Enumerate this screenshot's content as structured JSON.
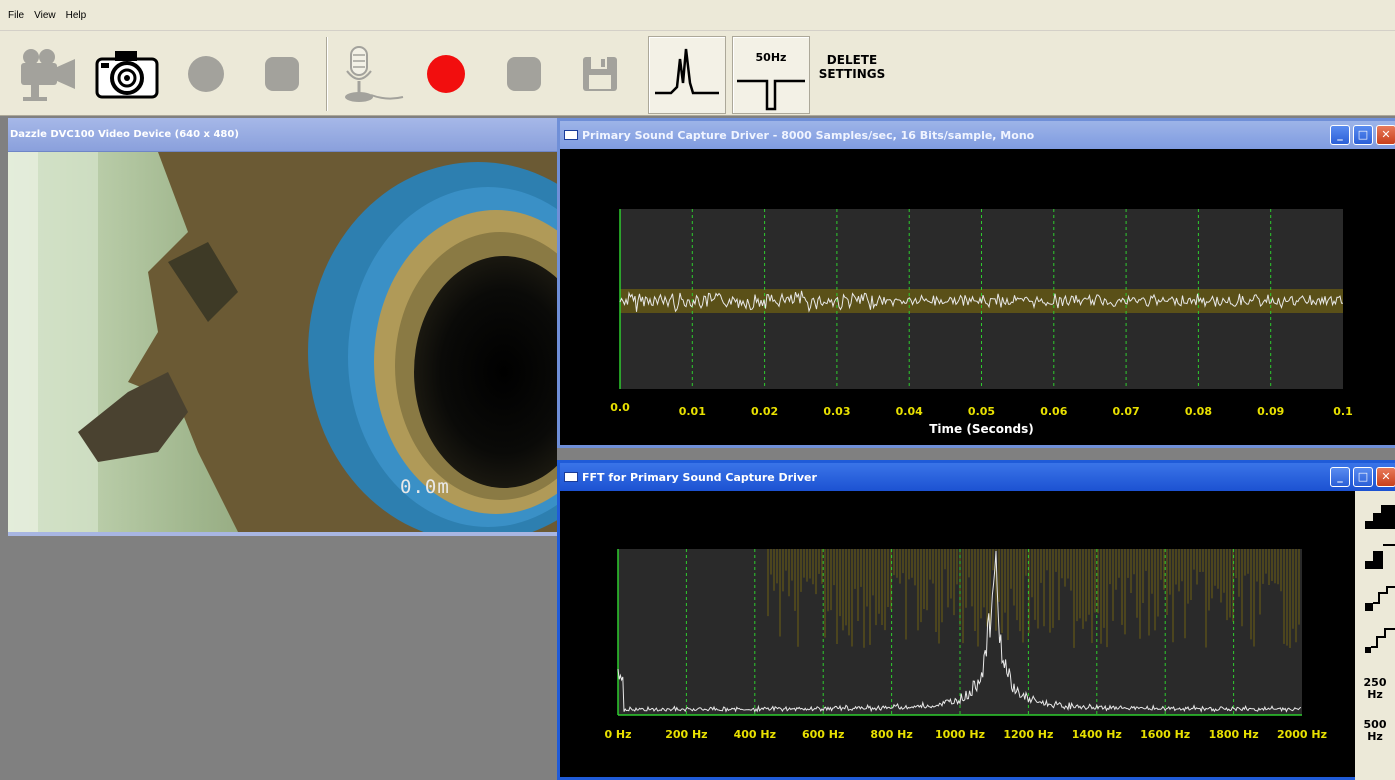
{
  "menu": [
    "File",
    "View",
    "Help"
  ],
  "toolbar": {
    "filter_label": "50Hz",
    "delete_line1": "DELETE",
    "delete_line2": "SETTINGS"
  },
  "video": {
    "title": "Dazzle DVC100 Video Device  (640 x 480)",
    "distance_overlay": "0.0m"
  },
  "scope": {
    "title": "Primary Sound Capture Driver  -  8000 Samples/sec, 16 Bits/sample, Mono",
    "chart_data": {
      "type": "line",
      "xlabel": "Time (Seconds)",
      "ylabel": "",
      "xlim": [
        0.0,
        0.1
      ],
      "ticks": [
        "0.0",
        "0.01",
        "0.02",
        "0.03",
        "0.04",
        "0.05",
        "0.06",
        "0.07",
        "0.08",
        "0.09",
        "0.1"
      ],
      "grid": true,
      "series_color": "#e8e8e8",
      "grid_color": "#2ecc2e",
      "label_color": "#e8e000",
      "signal_amplitude": 0.05
    }
  },
  "fft": {
    "title": "FFT for Primary Sound Capture Driver",
    "chart_data": {
      "type": "line",
      "xlabel": "",
      "ylabel": "",
      "xlim": [
        0,
        2000
      ],
      "ticks": [
        "0 Hz",
        "200 Hz",
        "400 Hz",
        "600 Hz",
        "800 Hz",
        "1000 Hz",
        "1200 Hz",
        "1400 Hz",
        "1600 Hz",
        "1800 Hz",
        "2000 Hz"
      ],
      "grid": true,
      "peak_hz": 1100,
      "series_color": "#e8e8e8",
      "grid_color": "#2ecc2e",
      "label_color": "#e8e000"
    },
    "side": {
      "hz_a": "250",
      "hz_a_unit": "Hz",
      "hz_b": "500",
      "hz_b_unit": "Hz"
    }
  }
}
